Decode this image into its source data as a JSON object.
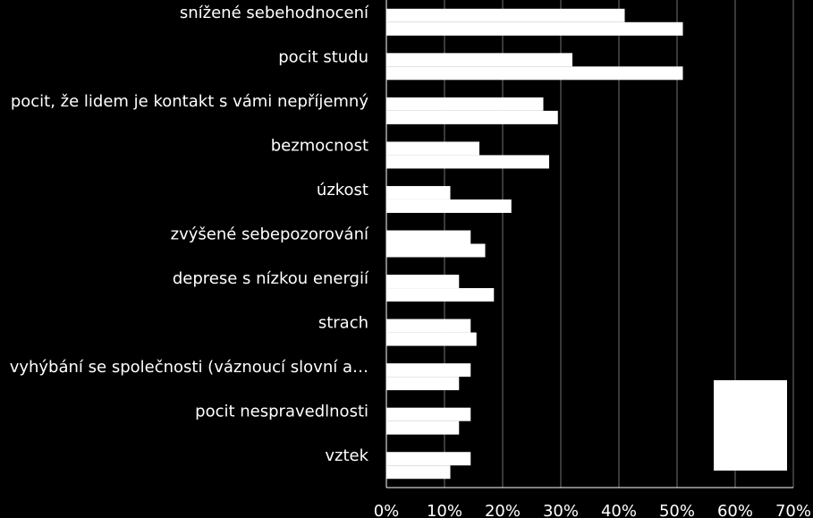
{
  "chart_data": {
    "type": "bar",
    "orientation": "horizontal",
    "categories": [
      "snížené sebehodnocení",
      "pocit studu",
      "pocit, že lidem je kontakt s vámi nepříjemný",
      "bezmocnost",
      "úzkost",
      "zvýšené sebepozorování",
      "deprese s nízkou energií",
      "strach",
      "vyhýbání se společnosti (váznoucí slovní a…",
      "pocit nespravedlnosti",
      "vztek"
    ],
    "series": [
      {
        "values": [
          41,
          32,
          27,
          16,
          11,
          14.5,
          12.5,
          14.5,
          14.5,
          14.5,
          14.5
        ]
      },
      {
        "values": [
          51,
          51,
          29.5,
          28,
          21.5,
          17,
          18.5,
          15.5,
          12.5,
          12.5,
          11
        ]
      }
    ],
    "xlim": [
      0,
      70
    ],
    "xticks": [
      "0%",
      "10%",
      "20%",
      "30%",
      "40%",
      "50%",
      "60%",
      "70%"
    ],
    "grid": true,
    "legend": "bottom-right",
    "colors": {
      "background": "#000000",
      "bars": "#ffffff",
      "text": "#ffffff",
      "grid": "#bfbfbf"
    }
  }
}
